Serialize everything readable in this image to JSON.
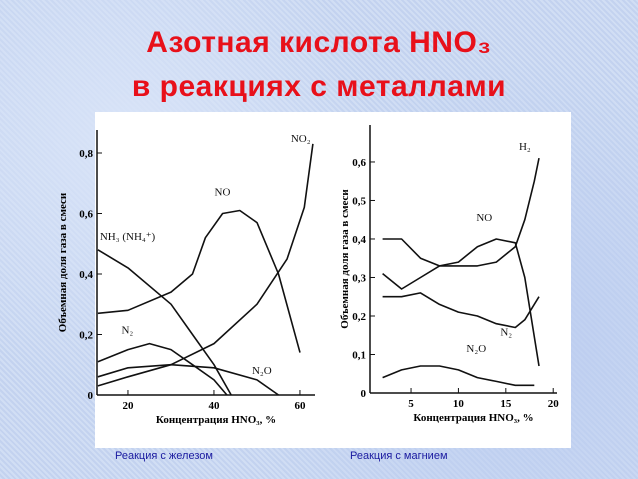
{
  "title": [
    "Азотная кислота HNO₃",
    "в реакциях с металлами"
  ],
  "chart_data": [
    {
      "type": "line",
      "caption": "Реакция с железом",
      "x_label": "Концентрация HNO₃, %",
      "y_label": "Объемная доля газа в смеси",
      "xlim": [
        12.8,
        63.5
      ],
      "ylim": [
        0,
        0.876
      ],
      "xticks": [
        20,
        40,
        60
      ],
      "yticks": [
        0,
        {
          "value": 0.2,
          "label": "0,2"
        },
        {
          "value": 0.4,
          "label": "0,4"
        },
        {
          "value": 0.6,
          "label": "0,6"
        },
        {
          "value": 0.8,
          "label": "0,8"
        }
      ],
      "series": [
        {
          "name": "NO₂",
          "color": "#111111",
          "x": [
            13,
            20,
            30,
            40,
            50,
            57,
            61,
            63
          ],
          "values": [
            0.03,
            0.06,
            0.1,
            0.17,
            0.3,
            0.45,
            0.62,
            0.83
          ]
        },
        {
          "name": "NO",
          "color": "#111111",
          "x": [
            13,
            20,
            30,
            35,
            38,
            42,
            46,
            50,
            55,
            60
          ],
          "values": [
            0.27,
            0.28,
            0.34,
            0.4,
            0.52,
            0.6,
            0.61,
            0.57,
            0.4,
            0.14
          ]
        },
        {
          "name": "NH₃ (NH₄⁺)",
          "color": "#111111",
          "x": [
            13,
            20,
            30,
            35,
            40,
            44
          ],
          "values": [
            0.48,
            0.42,
            0.3,
            0.2,
            0.1,
            0
          ]
        },
        {
          "name": "N₂",
          "color": "#111111",
          "x": [
            13,
            20,
            25,
            30,
            35,
            40,
            43
          ],
          "values": [
            0.11,
            0.15,
            0.17,
            0.15,
            0.1,
            0.05,
            0
          ]
        },
        {
          "name": "N₂O",
          "color": "#111111",
          "x": [
            13,
            20,
            30,
            40,
            50,
            55
          ],
          "values": [
            0.06,
            0.09,
            0.1,
            0.09,
            0.05,
            0
          ]
        }
      ]
    },
    {
      "type": "line",
      "caption": "Реакция с магнием",
      "x_label": "Концентрация HNO₃, %",
      "y_label": "Объемная доля газа в смеси",
      "xlim": [
        0.67,
        20.4
      ],
      "ylim": [
        0,
        0.696
      ],
      "xticks": [
        5,
        10,
        15,
        20
      ],
      "yticks": [
        0,
        {
          "value": 0.1,
          "label": "0,1"
        },
        {
          "value": 0.2,
          "label": "0,2"
        },
        {
          "value": 0.3,
          "label": "0,3"
        },
        {
          "value": 0.4,
          "label": "0,4"
        },
        {
          "value": 0.5,
          "label": "0,5"
        },
        {
          "value": 0.6,
          "label": "0,6"
        }
      ],
      "series": [
        {
          "name": "H₂",
          "color": "#111111",
          "x": [
            2,
            4,
            6,
            8,
            10,
            12,
            14,
            16,
            17,
            18,
            18.5
          ],
          "values": [
            0.31,
            0.27,
            0.3,
            0.33,
            0.33,
            0.33,
            0.34,
            0.38,
            0.45,
            0.55,
            0.61
          ]
        },
        {
          "name": "NO",
          "color": "#111111",
          "x": [
            2,
            4,
            6,
            8,
            10,
            12,
            14,
            16,
            17,
            18.5
          ],
          "values": [
            0.4,
            0.4,
            0.35,
            0.33,
            0.34,
            0.38,
            0.4,
            0.39,
            0.3,
            0.07
          ]
        },
        {
          "name": "N₂",
          "color": "#111111",
          "x": [
            2,
            4,
            6,
            8,
            10,
            12,
            14,
            16,
            17,
            18.5
          ],
          "values": [
            0.25,
            0.25,
            0.26,
            0.23,
            0.21,
            0.2,
            0.18,
            0.17,
            0.19,
            0.25
          ]
        },
        {
          "name": "N₂O",
          "color": "#111111",
          "x": [
            2,
            4,
            6,
            8,
            10,
            12,
            14,
            16,
            18
          ],
          "values": [
            0.04,
            0.06,
            0.07,
            0.07,
            0.06,
            0.04,
            0.03,
            0.02,
            0.02
          ]
        }
      ]
    }
  ]
}
